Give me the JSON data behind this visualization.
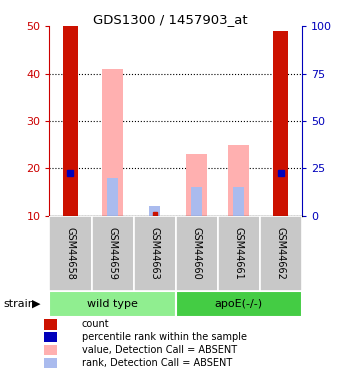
{
  "title": "GDS1300 / 1457903_at",
  "samples": [
    "GSM44658",
    "GSM44659",
    "GSM44663",
    "GSM44660",
    "GSM44661",
    "GSM44662"
  ],
  "groups": [
    {
      "label": "wild type",
      "indices": [
        0,
        1,
        2
      ],
      "color": "#90EE90"
    },
    {
      "label": "apoE(-/-)",
      "indices": [
        3,
        4,
        5
      ],
      "color": "#44CC44"
    }
  ],
  "red_bars_top": [
    50,
    10,
    10,
    10,
    10,
    49
  ],
  "red_bars_bottom": [
    10,
    10,
    10,
    10,
    10,
    10
  ],
  "pink_bars_top": [
    10,
    41,
    10,
    23,
    25,
    10
  ],
  "pink_bars_bottom": [
    10,
    10,
    10,
    10,
    10,
    10
  ],
  "blue_sq_y": [
    19,
    0,
    0,
    0,
    0,
    19
  ],
  "blue_sq_show": [
    true,
    false,
    false,
    false,
    false,
    true
  ],
  "light_blue_top": [
    10,
    18,
    12,
    16,
    16,
    10
  ],
  "light_blue_bottom": [
    10,
    10,
    10,
    10,
    10,
    10
  ],
  "light_blue_show": [
    false,
    true,
    true,
    true,
    true,
    false
  ],
  "red_sq_show": [
    false,
    false,
    true,
    false,
    false,
    false
  ],
  "red_sq_y": [
    10,
    10,
    10.4,
    10,
    10,
    10
  ],
  "ylim": [
    10,
    50
  ],
  "yticks_left": [
    10,
    20,
    30,
    40,
    50
  ],
  "yticks_right": [
    0,
    25,
    50,
    75,
    100
  ],
  "left_tick_color": "#CC0000",
  "right_tick_color": "#0000BB",
  "pink_color": "#FFB0B0",
  "light_blue_color": "#AABBEE",
  "red_color": "#CC1100",
  "blue_color": "#0000BB",
  "sample_bg": "#C8C8C8",
  "grid_color": "#000000",
  "legend_items": [
    {
      "color": "#CC1100",
      "label": "count"
    },
    {
      "color": "#0000BB",
      "label": "percentile rank within the sample"
    },
    {
      "color": "#FFB0B0",
      "label": "value, Detection Call = ABSENT"
    },
    {
      "color": "#AABBEE",
      "label": "rank, Detection Call = ABSENT"
    }
  ]
}
